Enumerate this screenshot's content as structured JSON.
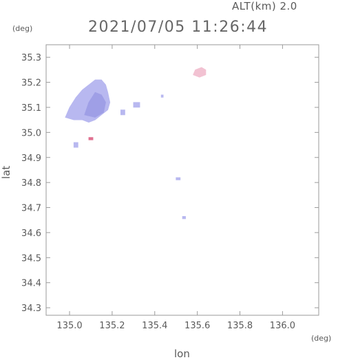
{
  "header": {
    "altitude_label": "ALT(km)  2.0",
    "timestamp": "2021/07/05 11:26:44"
  },
  "axes": {
    "y_unit": "(deg)",
    "x_unit": "(deg)",
    "x_label": "lon",
    "y_label": "lat"
  },
  "colors": {
    "frame": "#9a9a9a",
    "echo_main": "#b8b8f0",
    "echo_dense": "#9f9fe6",
    "echo_pink": "#f2c2d2",
    "echo_red": "#e07090"
  },
  "chart_data": {
    "type": "scatter",
    "title": "2021/07/05 11:26:44",
    "subtitle": "ALT(km)  2.0",
    "xlabel": "lon",
    "ylabel": "lat",
    "xlim": [
      134.89,
      136.17
    ],
    "ylim": [
      34.27,
      35.35
    ],
    "x_ticks": [
      "135.0",
      "135.2",
      "135.4",
      "135.6",
      "135.8",
      "136.0"
    ],
    "y_ticks": [
      "34.3",
      "34.4",
      "34.5",
      "34.6",
      "34.7",
      "34.8",
      "34.9",
      "35.0",
      "35.1",
      "35.2",
      "35.3"
    ],
    "grid": false,
    "blobs": [
      {
        "kind": "main",
        "points": [
          [
            134.98,
            35.06
          ],
          [
            135.0,
            35.1
          ],
          [
            135.03,
            35.14
          ],
          [
            135.06,
            35.17
          ],
          [
            135.09,
            35.19
          ],
          [
            135.12,
            35.21
          ],
          [
            135.15,
            35.21
          ],
          [
            135.17,
            35.19
          ],
          [
            135.18,
            35.16
          ],
          [
            135.19,
            35.12
          ],
          [
            135.18,
            35.09
          ],
          [
            135.15,
            35.07
          ],
          [
            135.12,
            35.05
          ],
          [
            135.09,
            35.04
          ],
          [
            135.06,
            35.05
          ],
          [
            135.02,
            35.05
          ]
        ]
      },
      {
        "kind": "dense",
        "points": [
          [
            135.07,
            35.07
          ],
          [
            135.09,
            35.12
          ],
          [
            135.12,
            35.16
          ],
          [
            135.15,
            35.15
          ],
          [
            135.17,
            35.12
          ],
          [
            135.16,
            35.08
          ],
          [
            135.12,
            35.06
          ]
        ]
      },
      {
        "kind": "main",
        "points": [
          [
            135.01,
            35.09
          ],
          [
            135.03,
            35.12
          ],
          [
            135.05,
            35.11
          ],
          [
            135.04,
            35.09
          ]
        ]
      },
      {
        "kind": "main",
        "points": [
          [
            135.02,
            34.94
          ],
          [
            135.02,
            34.96
          ],
          [
            135.04,
            34.96
          ],
          [
            135.04,
            34.94
          ]
        ]
      },
      {
        "kind": "main",
        "points": [
          [
            135.24,
            35.07
          ],
          [
            135.24,
            35.09
          ],
          [
            135.26,
            35.09
          ],
          [
            135.26,
            35.07
          ]
        ]
      },
      {
        "kind": "main",
        "points": [
          [
            135.3,
            35.1
          ],
          [
            135.3,
            35.12
          ],
          [
            135.33,
            35.12
          ],
          [
            135.33,
            35.1
          ]
        ]
      },
      {
        "kind": "main",
        "points": [
          [
            135.43,
            35.14
          ],
          [
            135.43,
            35.15
          ],
          [
            135.44,
            35.15
          ],
          [
            135.44,
            35.14
          ]
        ]
      },
      {
        "kind": "pink",
        "points": [
          [
            135.58,
            35.23
          ],
          [
            135.59,
            35.25
          ],
          [
            135.62,
            35.26
          ],
          [
            135.64,
            35.25
          ],
          [
            135.64,
            35.23
          ],
          [
            135.61,
            35.22
          ]
        ]
      },
      {
        "kind": "red",
        "points": [
          [
            135.09,
            34.97
          ],
          [
            135.09,
            34.98
          ],
          [
            135.11,
            34.98
          ],
          [
            135.11,
            34.97
          ]
        ]
      },
      {
        "kind": "main",
        "points": [
          [
            135.5,
            34.81
          ],
          [
            135.5,
            34.82
          ],
          [
            135.52,
            34.82
          ],
          [
            135.52,
            34.81
          ]
        ]
      },
      {
        "kind": "main",
        "points": [
          [
            135.53,
            34.655
          ],
          [
            135.53,
            34.665
          ],
          [
            135.545,
            34.665
          ],
          [
            135.545,
            34.655
          ]
        ]
      }
    ]
  }
}
